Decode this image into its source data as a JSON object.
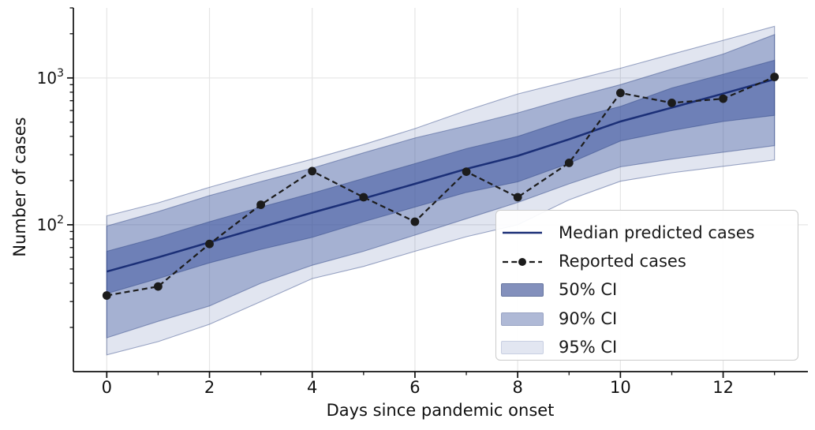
{
  "figure": {
    "xlabel": "Days since pandemic onset",
    "ylabel": "Number of cases"
  },
  "legend": {
    "items": [
      {
        "label": "Median predicted cases",
        "type": "line"
      },
      {
        "label": "Reported cases",
        "type": "dashed-dot"
      },
      {
        "label": "50% CI",
        "type": "patch"
      },
      {
        "label": "90% CI",
        "type": "patch"
      },
      {
        "label": "95% CI",
        "type": "patch"
      }
    ]
  },
  "colors": {
    "band_base": "#37509B",
    "band_alpha_95": 0.15,
    "band_alpha_90": 0.35,
    "band_alpha_50": 0.5,
    "band_edge": "rgba(44,66,130,0.45)",
    "median_line": "#1B2F77",
    "reported_line": "#1C1C1C",
    "grid": "#E5E5E5",
    "spine": "#111111",
    "tick_label": "#111111",
    "legend_swatch_50": "#8390BC",
    "legend_swatch_50_border": "#66759F",
    "legend_swatch_90": "#AFB9D6",
    "legend_swatch_90_border": "#99A3C2",
    "legend_swatch_95": "#E2E6F1",
    "legend_swatch_95_border": "#C8CFE2"
  },
  "chart_data": {
    "type": "line",
    "title": "",
    "xlabel": "Days since pandemic onset",
    "ylabel": "Number of cases",
    "x": [
      0,
      1,
      2,
      3,
      4,
      5,
      6,
      7,
      8,
      9,
      10,
      11,
      12,
      13
    ],
    "series": [
      {
        "name": "Median predicted cases",
        "values": [
          48,
          60,
          76,
          96,
          121,
          151,
          190,
          240,
          295,
          382,
          505,
          628,
          782,
          980
        ]
      },
      {
        "name": "Reported cases",
        "values": [
          33,
          38,
          74,
          137,
          232,
          154,
          105,
          230,
          154,
          264,
          790,
          676,
          722,
          1016
        ]
      },
      {
        "name": "50% CI lower",
        "values": [
          34,
          43,
          55,
          68,
          82,
          105,
          132,
          166,
          196,
          262,
          372,
          438,
          505,
          556
        ]
      },
      {
        "name": "50% CI upper",
        "values": [
          66,
          82,
          105,
          132,
          164,
          207,
          261,
          330,
          400,
          522,
          640,
          855,
          1060,
          1320
        ]
      },
      {
        "name": "90% CI lower",
        "values": [
          17,
          22,
          28,
          40,
          53,
          66,
          85,
          110,
          142,
          190,
          248,
          280,
          312,
          346
        ]
      },
      {
        "name": "90% CI upper",
        "values": [
          98,
          123,
          158,
          197,
          243,
          309,
          390,
          472,
          578,
          728,
          900,
          1150,
          1455,
          1975
        ]
      },
      {
        "name": "95% CI lower",
        "values": [
          13,
          16,
          21,
          30,
          43,
          52,
          66,
          83,
          100,
          148,
          198,
          226,
          250,
          276
        ]
      },
      {
        "name": "95% CI upper",
        "values": [
          115,
          141,
          180,
          226,
          280,
          352,
          452,
          600,
          778,
          952,
          1165,
          1452,
          1805,
          2250
        ]
      }
    ],
    "y_scale": "log",
    "xlim": [
      -0.65,
      13.65
    ],
    "ylim": [
      10,
      3000
    ],
    "x_major_ticks": [
      0,
      2,
      4,
      6,
      8,
      10,
      12
    ],
    "x_minor_ticks": [
      1,
      3,
      5,
      7,
      9,
      11,
      13
    ],
    "y_major_ticks": [
      100,
      1000
    ],
    "y_minor_ticks": [
      20,
      30,
      40,
      50,
      60,
      70,
      80,
      90,
      200,
      300,
      400,
      500,
      600,
      700,
      800,
      900,
      2000,
      3000
    ],
    "grid": true,
    "legend_position": "lower right"
  }
}
